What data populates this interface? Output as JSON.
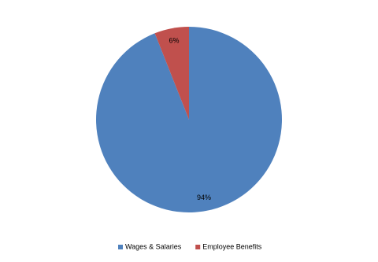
{
  "chart_data": {
    "type": "pie",
    "categories": [
      "Wages & Salaries",
      "Employee Benefits"
    ],
    "values": [
      94,
      6
    ],
    "value_labels": [
      "94%",
      "6%"
    ],
    "colors": [
      "#4f81bd",
      "#c0504d"
    ],
    "legend": "bottom"
  }
}
